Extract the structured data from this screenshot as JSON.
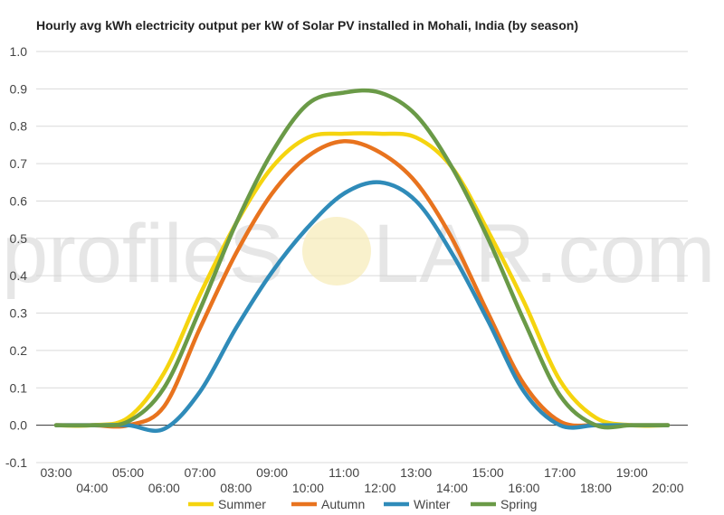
{
  "chart_data": {
    "type": "line",
    "title": "Hourly avg kWh electricity output per kW of Solar PV installed in Mohali, India (by season)",
    "xlabel": "",
    "ylabel": "",
    "x": [
      "03:00",
      "04:00",
      "05:00",
      "06:00",
      "07:00",
      "08:00",
      "09:00",
      "10:00",
      "11:00",
      "12:00",
      "13:00",
      "14:00",
      "15:00",
      "16:00",
      "17:00",
      "18:00",
      "19:00",
      "20:00"
    ],
    "xlim": [
      3,
      20
    ],
    "ylim": [
      -0.1,
      1.0
    ],
    "yticks": [
      "-0.1",
      "0.0",
      "0.1",
      "0.2",
      "0.3",
      "0.4",
      "0.5",
      "0.6",
      "0.7",
      "0.8",
      "0.9",
      "1.0"
    ],
    "grid": true,
    "legend_position": "bottom",
    "series": [
      {
        "name": "Summer",
        "color": "#f5d40f",
        "values": [
          0.0,
          0.0,
          0.02,
          0.14,
          0.35,
          0.54,
          0.69,
          0.77,
          0.78,
          0.78,
          0.77,
          0.69,
          0.52,
          0.33,
          0.12,
          0.02,
          0.0,
          0.0
        ]
      },
      {
        "name": "Autumn",
        "color": "#e8731e",
        "values": [
          0.0,
          0.0,
          0.0,
          0.05,
          0.26,
          0.46,
          0.62,
          0.72,
          0.76,
          0.73,
          0.65,
          0.5,
          0.3,
          0.11,
          0.01,
          0.0,
          0.0,
          0.0
        ]
      },
      {
        "name": "Winter",
        "color": "#2f8bb9",
        "values": [
          0.0,
          0.0,
          0.0,
          -0.01,
          0.09,
          0.26,
          0.41,
          0.53,
          0.62,
          0.65,
          0.6,
          0.46,
          0.28,
          0.09,
          0.0,
          0.0,
          0.0,
          0.0
        ]
      },
      {
        "name": "Spring",
        "color": "#6a9a47",
        "values": [
          0.0,
          0.0,
          0.01,
          0.1,
          0.31,
          0.54,
          0.73,
          0.86,
          0.89,
          0.89,
          0.83,
          0.69,
          0.5,
          0.28,
          0.08,
          0.0,
          0.0,
          0.0
        ]
      }
    ]
  },
  "watermark": {
    "left": "profileS",
    "right": "LAR.com"
  }
}
